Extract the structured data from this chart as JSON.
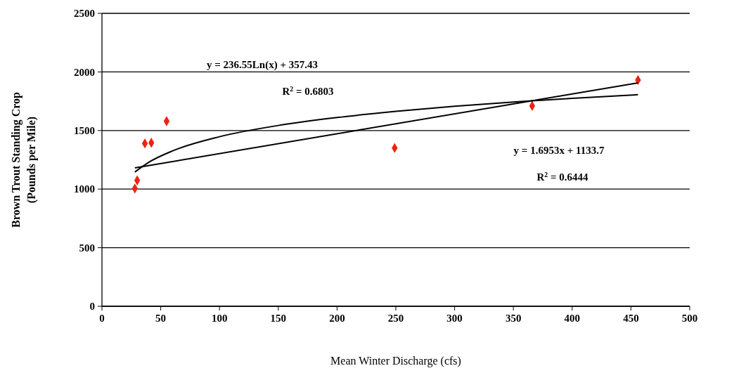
{
  "chart_data": {
    "type": "scatter",
    "xlabel": "Mean Winter Discharge (cfs)",
    "ylabel": "Brown Trout Standing Crop\n(Pounds per Mile)",
    "xlim": [
      0,
      500
    ],
    "xticks": [
      0,
      50,
      100,
      150,
      200,
      250,
      300,
      350,
      400,
      450,
      500
    ],
    "ylim": [
      0,
      2500
    ],
    "yticks": [
      0,
      500,
      1000,
      1500,
      2000,
      2500
    ],
    "grid": "y",
    "marker": "diamond",
    "series": [
      {
        "color": "#ee2211",
        "x": [
          28,
          30,
          36.5,
          42,
          55,
          249,
          366,
          456
        ],
        "values": [
          1005,
          1075,
          1390,
          1395,
          1580,
          1351,
          1710,
          1931
        ]
      },
      {
        "type": "line",
        "color": "#000000",
        "marker": "none",
        "x": [
          28,
          40,
          60,
          100,
          150,
          200,
          250,
          300,
          350,
          400,
          456
        ],
        "values": [
          1146,
          1230,
          1326,
          1447,
          1543,
          1611,
          1663,
          1707,
          1743,
          1775,
          1806
        ]
      },
      {
        "type": "line",
        "color": "#000000",
        "marker": "none",
        "x": [
          28,
          456
        ],
        "values": [
          1181,
          1907
        ]
      }
    ],
    "annotations": [
      "y = 236.55Ln(x) + 357.43",
      "R$^{2}$ = 0.6803",
      "y = 1.6953x + 1133.7",
      "R$^{2}$ = 0.6444"
    ]
  }
}
